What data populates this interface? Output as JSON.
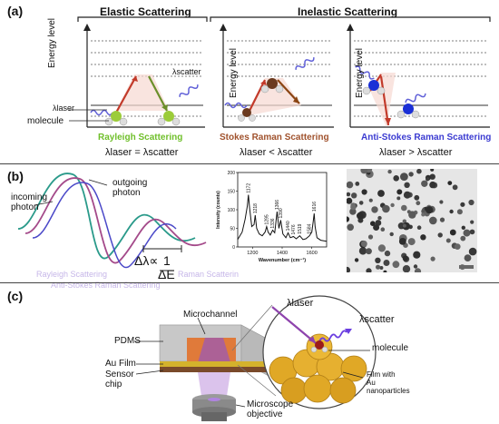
{
  "panel_a": {
    "label": "(a)",
    "elastic_title": "Elastic Scattering",
    "inelastic_title": "Inelastic Scattering",
    "energy_axis": "Energy level",
    "laser_label": "λlaser",
    "scatter_label": "λscatter",
    "molecule_label": "molecule",
    "rayleigh_name": "Rayleigh Scattering",
    "stokes_name": "Stokes Raman Scattering",
    "antistokes_name": "Anti-Stokes Raman Scattering",
    "rayleigh_rel": "λlaser = λscatter",
    "stokes_rel": "λlaser < λscatter",
    "antistokes_rel": "λlaser > λscatter",
    "colors": {
      "rayleigh": "#6fbf2a",
      "stokes": "#a0522d",
      "antistokes": "#3b3bd1"
    }
  },
  "panel_b": {
    "label": "(b)",
    "incoming": "incoming\nphoton",
    "outgoing": "outgoing\nphoton",
    "delta_lambda": "Δλ∝",
    "one": "1",
    "delta_e": "ΔE",
    "ghost_rayleigh": "Rayleigh Scattering",
    "ghost_raman": "Raman Scatterin",
    "ghost_stokes": "Anti-Stokes Raman Scattering",
    "spectrum": {
      "ylabel": "Intensity (counts)",
      "xlabel": "Wavenumber (cm⁻¹)",
      "yticks": [
        "0",
        "50",
        "100",
        "150",
        "200"
      ],
      "xticks": [
        "1200",
        "1400",
        "1600"
      ],
      "peaks": [
        "1172",
        "1218",
        "1295",
        "1336",
        "1366",
        "1390",
        "1440",
        "1476",
        "1519",
        "1584",
        "1616"
      ]
    }
  },
  "chart_data": {
    "type": "line",
    "title": "",
    "xlabel": "Wavenumber (cm⁻¹)",
    "ylabel": "Intensity (counts)",
    "xlim": [
      1100,
      1700
    ],
    "ylim": [
      0,
      200
    ],
    "x": [
      1100,
      1130,
      1150,
      1165,
      1172,
      1180,
      1195,
      1210,
      1218,
      1228,
      1245,
      1265,
      1285,
      1295,
      1305,
      1320,
      1336,
      1350,
      1366,
      1378,
      1390,
      1405,
      1425,
      1440,
      1455,
      1476,
      1495,
      1519,
      1540,
      1560,
      1584,
      1600,
      1610,
      1616,
      1622,
      1635,
      1660,
      1700
    ],
    "series": [
      {
        "values": [
          20,
          40,
          75,
          110,
          140,
          105,
          55,
          60,
          85,
          50,
          35,
          30,
          40,
          55,
          40,
          32,
          45,
          38,
          95,
          50,
          72,
          35,
          25,
          38,
          25,
          28,
          22,
          30,
          20,
          22,
          30,
          40,
          70,
          90,
          55,
          25,
          18,
          15
        ]
      }
    ],
    "grid": false
  },
  "panel_c": {
    "label": "(c)",
    "pdms": "PDMS",
    "microchannel": "Microchannel",
    "au_film": "Au Film",
    "sensor_chip": "Sensor\nchip",
    "objective": "Microscope\nobjective",
    "laser_label": "λlaser",
    "scatter_label": "λscatter",
    "molecule_label": "molecule",
    "film_label": "Film with\nAu\nnanoparticles"
  }
}
